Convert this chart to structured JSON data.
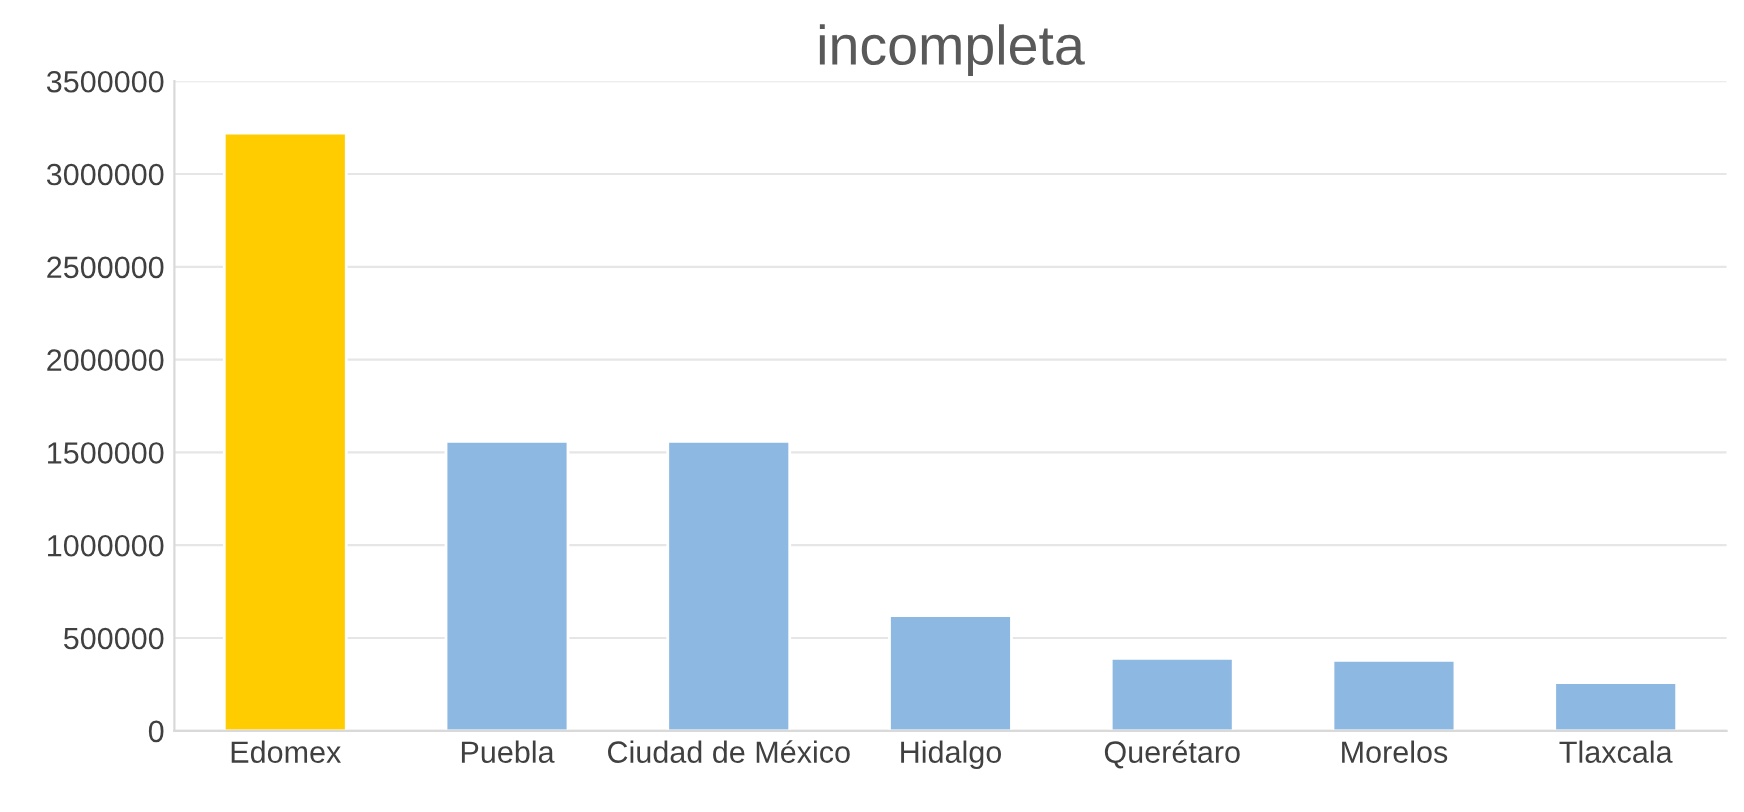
{
  "chart_data": {
    "type": "bar",
    "title": "incompleta",
    "categories": [
      "Edomex",
      "Puebla",
      "Ciudad de México",
      "Hidalgo",
      "Querétaro",
      "Morelos",
      "Tlaxcala"
    ],
    "values": [
      3220000,
      1560000,
      1560000,
      620000,
      390000,
      380000,
      260000
    ],
    "colors": [
      "#ffcc00",
      "#8db8e2",
      "#8db8e2",
      "#8db8e2",
      "#8db8e2",
      "#8db8e2",
      "#8db8e2"
    ],
    "ylim": [
      0,
      3500000
    ],
    "yticks": [
      0,
      500000,
      1000000,
      1500000,
      2000000,
      2500000,
      3000000,
      3500000
    ],
    "grid": "y",
    "legend": false
  }
}
